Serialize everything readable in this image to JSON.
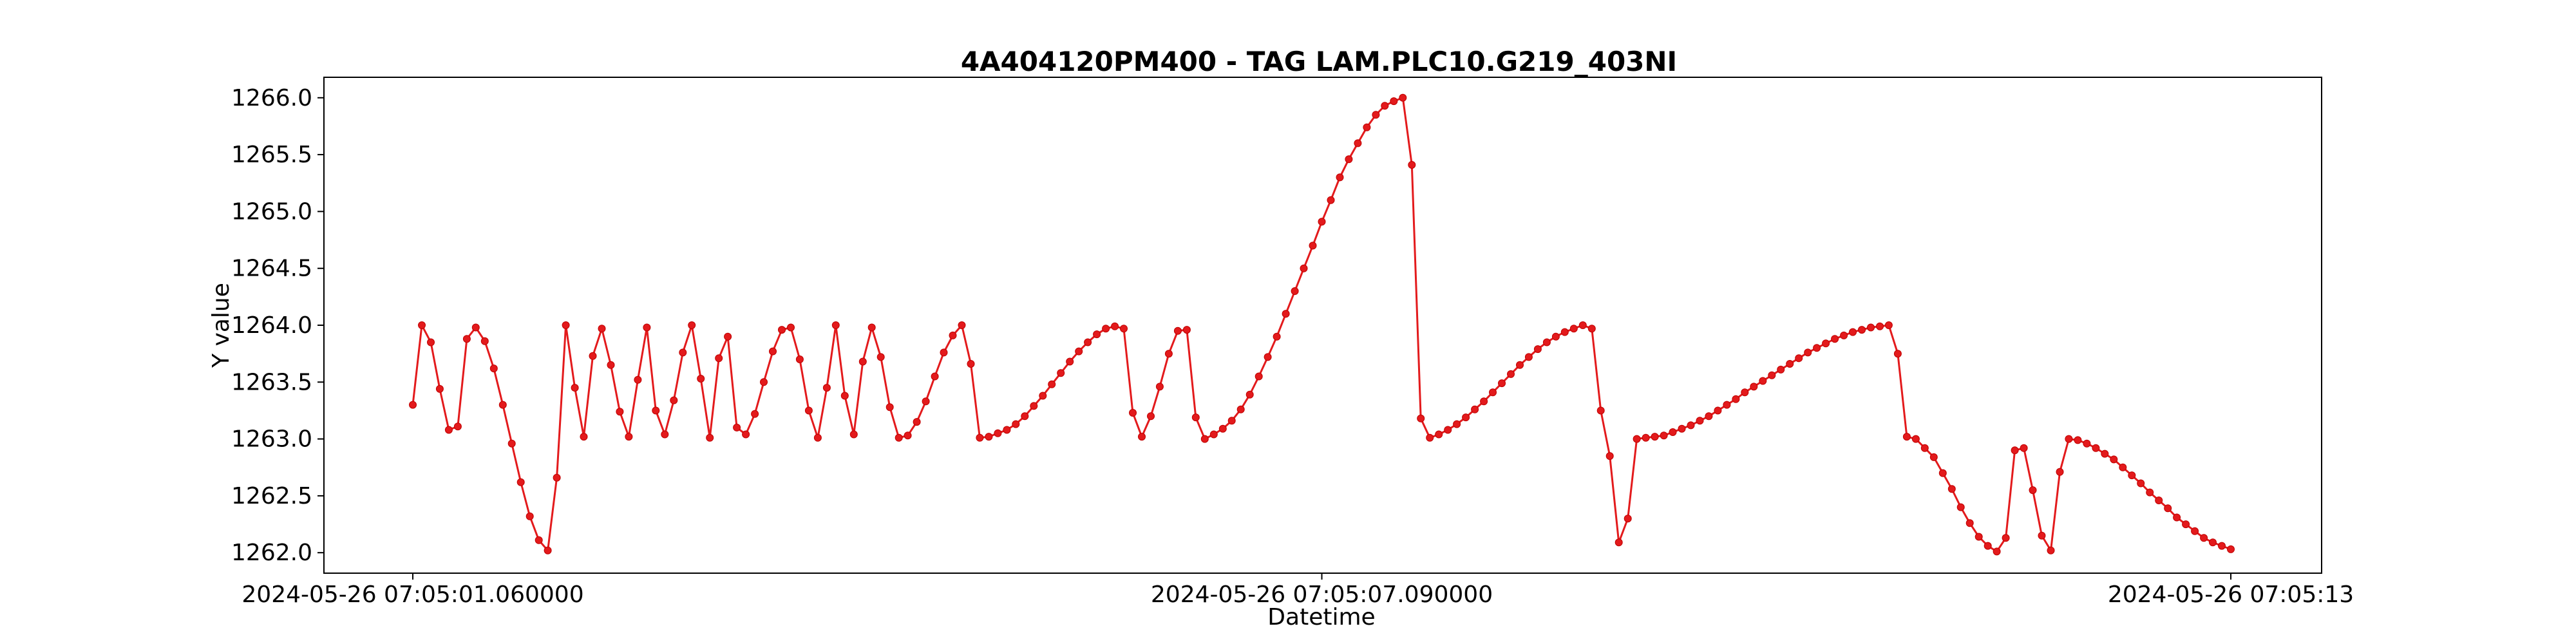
{
  "chart_data": {
    "type": "line",
    "title": "4A404120PM400 - TAG LAM.PLC10.G219_403NI",
    "xlabel": "Datetime",
    "ylabel": "Y value",
    "x_ticks": [
      "2024-05-26 07:05:01.060000",
      "2024-05-26 07:05:07.090000",
      "2024-05-26 07:05:13"
    ],
    "y_ticks": [
      1262.0,
      1262.5,
      1263.0,
      1263.5,
      1264.0,
      1264.5,
      1265.0,
      1265.5,
      1266.0
    ],
    "ylim": [
      1261.82,
      1266.18
    ],
    "grid": false,
    "legend": "none",
    "color": "#e31a1c",
    "series": [
      {
        "values": [
          1263.3,
          1264.0,
          1263.85,
          1263.44,
          1263.08,
          1263.11,
          1263.88,
          1263.98,
          1263.86,
          1263.62,
          1263.3,
          1262.96,
          1262.62,
          1262.32,
          1262.11,
          1262.02,
          1262.66,
          1264.0,
          1263.45,
          1263.02,
          1263.73,
          1263.97,
          1263.65,
          1263.24,
          1263.02,
          1263.52,
          1263.98,
          1263.25,
          1263.04,
          1263.34,
          1263.76,
          1264.0,
          1263.53,
          1263.01,
          1263.71,
          1263.9,
          1263.1,
          1263.04,
          1263.22,
          1263.5,
          1263.77,
          1263.96,
          1263.98,
          1263.7,
          1263.25,
          1263.01,
          1263.45,
          1264.0,
          1263.38,
          1263.04,
          1263.68,
          1263.98,
          1263.72,
          1263.28,
          1263.01,
          1263.03,
          1263.15,
          1263.33,
          1263.55,
          1263.76,
          1263.91,
          1264.0,
          1263.66,
          1263.01,
          1263.02,
          1263.05,
          1263.08,
          1263.13,
          1263.2,
          1263.29,
          1263.38,
          1263.48,
          1263.58,
          1263.68,
          1263.77,
          1263.85,
          1263.92,
          1263.97,
          1263.99,
          1263.97,
          1263.23,
          1263.02,
          1263.2,
          1263.46,
          1263.75,
          1263.95,
          1263.96,
          1263.19,
          1263.0,
          1263.04,
          1263.09,
          1263.16,
          1263.26,
          1263.39,
          1263.55,
          1263.72,
          1263.9,
          1264.1,
          1264.3,
          1264.5,
          1264.7,
          1264.91,
          1265.1,
          1265.3,
          1265.46,
          1265.6,
          1265.74,
          1265.85,
          1265.93,
          1265.97,
          1266.0,
          1265.41,
          1263.18,
          1263.01,
          1263.04,
          1263.08,
          1263.13,
          1263.19,
          1263.26,
          1263.33,
          1263.41,
          1263.49,
          1263.57,
          1263.65,
          1263.72,
          1263.79,
          1263.85,
          1263.9,
          1263.94,
          1263.97,
          1264.0,
          1263.97,
          1263.25,
          1262.85,
          1262.09,
          1262.3,
          1263.0,
          1263.01,
          1263.02,
          1263.03,
          1263.06,
          1263.09,
          1263.12,
          1263.16,
          1263.2,
          1263.25,
          1263.3,
          1263.35,
          1263.41,
          1263.46,
          1263.51,
          1263.56,
          1263.61,
          1263.66,
          1263.71,
          1263.76,
          1263.8,
          1263.84,
          1263.88,
          1263.91,
          1263.94,
          1263.96,
          1263.98,
          1263.99,
          1264.0,
          1263.75,
          1263.02,
          1263.0,
          1262.92,
          1262.84,
          1262.7,
          1262.56,
          1262.4,
          1262.26,
          1262.14,
          1262.06,
          1262.01,
          1262.13,
          1262.9,
          1262.92,
          1262.55,
          1262.15,
          1262.02,
          1262.71,
          1263.0,
          1262.99,
          1262.96,
          1262.92,
          1262.87,
          1262.82,
          1262.75,
          1262.68,
          1262.61,
          1262.53,
          1262.46,
          1262.39,
          1262.31,
          1262.25,
          1262.19,
          1262.13,
          1262.09,
          1262.06,
          1262.03
        ]
      }
    ]
  }
}
